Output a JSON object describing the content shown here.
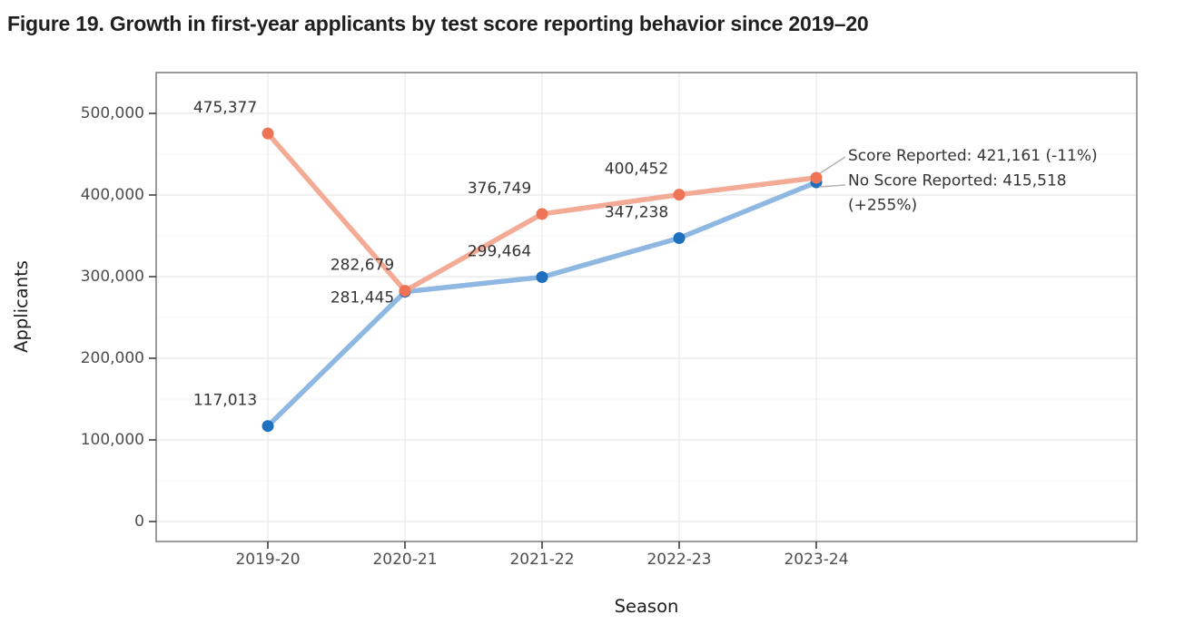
{
  "figure": {
    "title": "Figure 19. Growth in first-year applicants by test score reporting behavior since 2019–20"
  },
  "chart_data": {
    "type": "line",
    "title": "Figure 19. Growth in first-year applicants by test score reporting behavior since 2019–20",
    "xlabel": "Season",
    "ylabel": "Applicants",
    "categories": [
      "2019-20",
      "2020-21",
      "2021-22",
      "2022-23",
      "2023-24"
    ],
    "series": [
      {
        "name": "Score Reported",
        "values": [
          475377,
          282679,
          376749,
          400452,
          421161
        ],
        "point_color": "#ee7455",
        "line_color": "#f4ab96",
        "final_value": 421161,
        "change_label": "-11%"
      },
      {
        "name": "No Score Reported",
        "values": [
          117013,
          281445,
          299464,
          347238,
          415518
        ],
        "point_color": "#1f6fbf",
        "line_color": "#8eb8e2",
        "final_value": 415518,
        "change_label": "+255%"
      }
    ],
    "ylim": [
      0,
      550000
    ],
    "yticks": [
      0,
      100000,
      200000,
      300000,
      400000,
      500000
    ],
    "grid": "major-and-minor-horizontal, major-vertical",
    "legend": "none",
    "annotations": {
      "lines": [
        "Score Reported: 421,161 (-11%)",
        "No Score Reported: 415,518",
        "(+255%)"
      ]
    },
    "style": {
      "grid_major": "#e8e8e8",
      "grid_minor": "#f4f4f4",
      "panel_border": "#7a7a7a",
      "tick_mark": "#333333",
      "tick_label": "#4d4d4d",
      "data_label": "#333333",
      "axis_title": "#1f1f1f",
      "annotation_text": "#333333",
      "leader_line": "#b3b3b3",
      "title_color": "#1f1f1f",
      "background": "#ffffff"
    }
  }
}
